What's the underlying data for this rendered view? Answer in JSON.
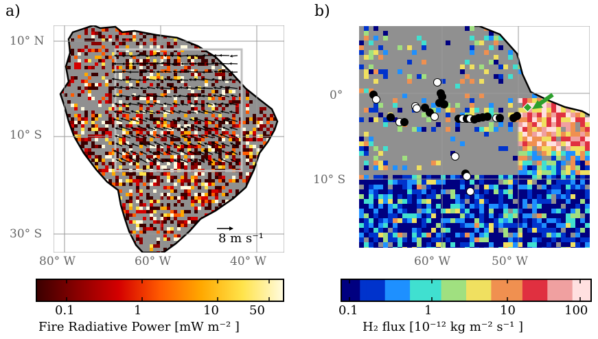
{
  "panel_a": {
    "label": "a)",
    "lat_ticks": [
      "10° N",
      "10° S",
      "30° S"
    ],
    "lon_ticks": [
      "80° W",
      "60° W",
      "40° W"
    ],
    "wind_scale": "8 m s⁻¹",
    "colorbar": {
      "ticks": [
        "0.1",
        "1",
        "10",
        "50"
      ],
      "label": "Fire Radiative Power [mW m⁻² ]",
      "colors": [
        "#3a0000",
        "#8a0000",
        "#d40000",
        "#ff5a00",
        "#ffa800",
        "#ffe34a",
        "#fffbe0"
      ]
    }
  },
  "panel_b": {
    "label": "b)",
    "lat_ticks": [
      "0°",
      "10° S"
    ],
    "lon_ticks": [
      "60° W",
      "50° W"
    ],
    "colorbar": {
      "ticks": [
        "0.1",
        "1",
        "10",
        "100"
      ],
      "label": "H₂ flux [10⁻¹² kg m⁻² s⁻¹ ]",
      "colors": [
        "#000080",
        "#0033cc",
        "#1e90ff",
        "#40e0d0",
        "#a0e080",
        "#f0e060",
        "#f09050",
        "#e03040",
        "#f0a0a0",
        "#ffe0e0"
      ]
    }
  },
  "chart_data": [
    {
      "type": "heatmap",
      "title": "",
      "xlabel": "",
      "ylabel": "",
      "xlim": [
        -86,
        -34
      ],
      "ylim": [
        -34,
        13
      ],
      "colorbar_scale": "log",
      "colorbar_range": [
        0.05,
        70
      ],
      "colorbar_label": "Fire Radiative Power [mW m⁻² ]",
      "overlay": "wind vectors over 70° W–36° W, 15° S–8° N, reference 8 m s⁻¹",
      "grid": true
    },
    {
      "type": "heatmap",
      "title": "",
      "xlabel": "",
      "ylabel": "",
      "xlim": [
        -70,
        -42
      ],
      "ylim": [
        -18.5,
        8.5
      ],
      "colorbar_scale": "log",
      "colorbar_range": [
        0.08,
        120
      ],
      "colorbar_label": "H₂ flux [10⁻¹² kg m⁻² s⁻¹ ]",
      "grid": true
    }
  ]
}
